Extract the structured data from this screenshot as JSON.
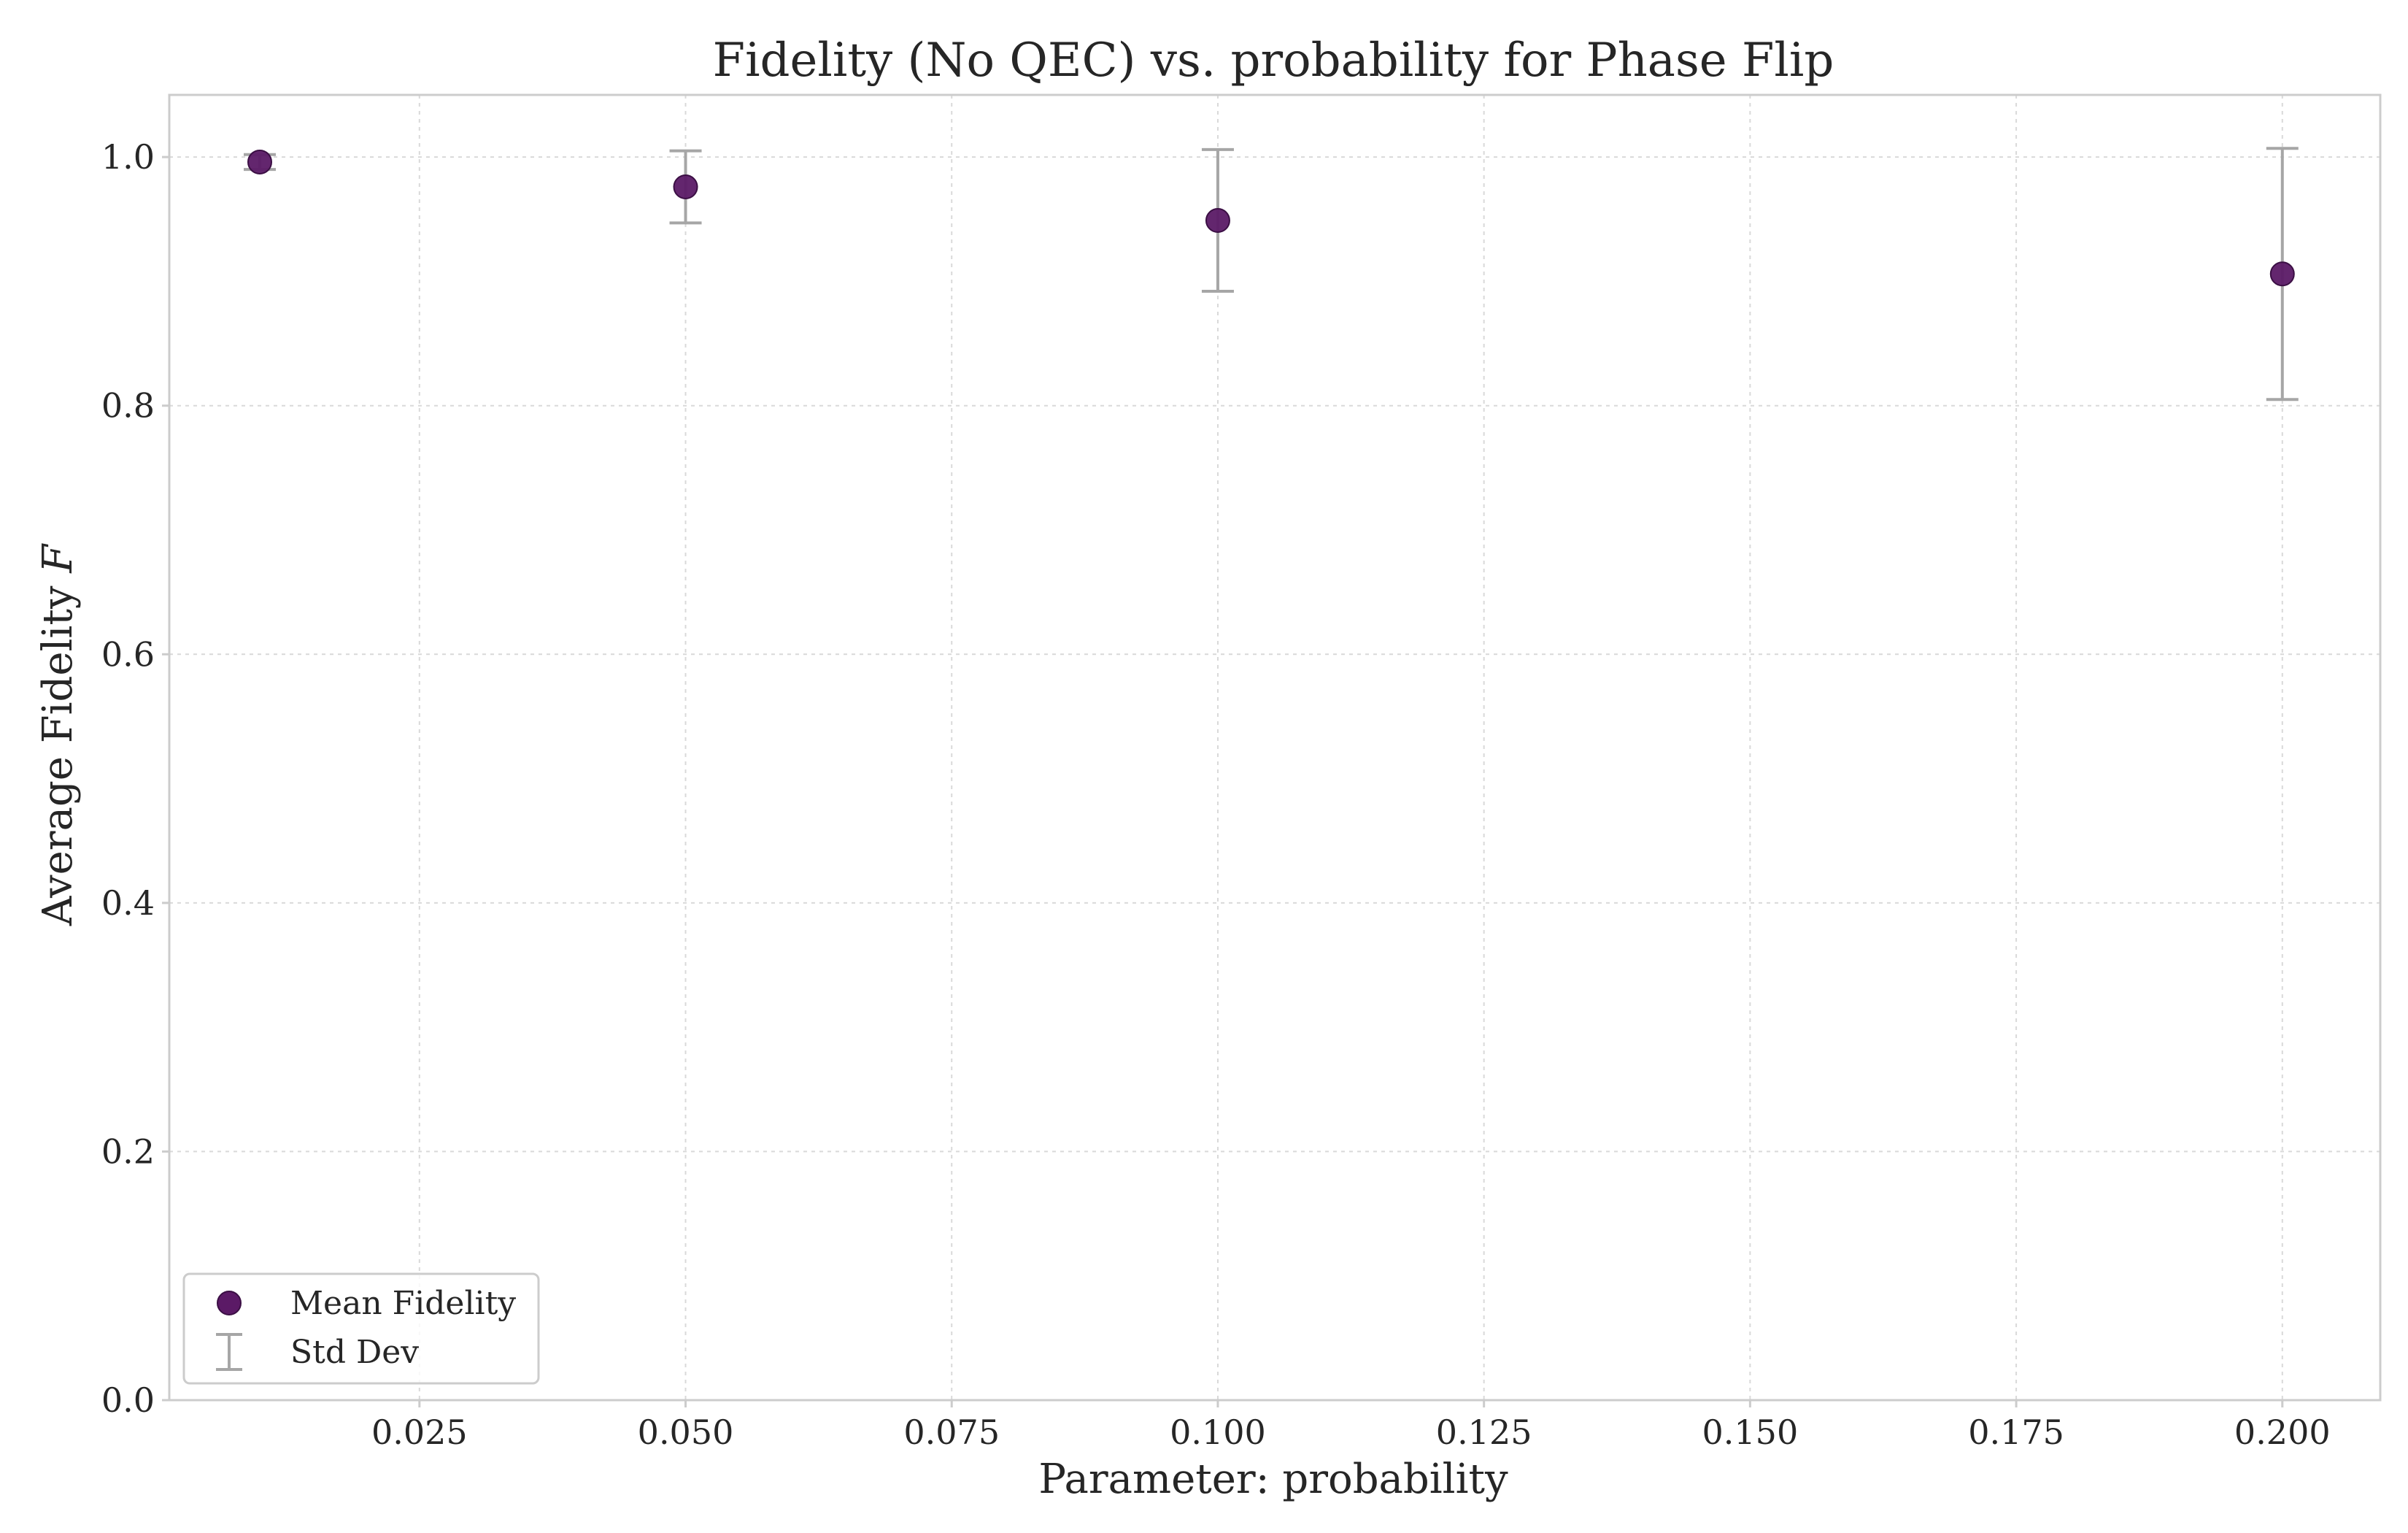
{
  "chart_data": {
    "type": "scatter",
    "title": "Fidelity (No QEC) vs. probability for Phase Flip",
    "xlabel": "Parameter: probability",
    "ylabel": "Average Fidelity",
    "ylabel_symbol": "F",
    "xlim": [
      0.0015,
      0.2092
    ],
    "ylim": [
      0.0,
      1.05
    ],
    "xticks": [
      0.025,
      0.05,
      0.075,
      0.1,
      0.125,
      0.15,
      0.175,
      0.2
    ],
    "xtick_labels": [
      "0.025",
      "0.050",
      "0.075",
      "0.100",
      "0.125",
      "0.150",
      "0.175",
      "0.200"
    ],
    "yticks": [
      0.0,
      0.2,
      0.4,
      0.6,
      0.8,
      1.0
    ],
    "ytick_labels": [
      "0.0",
      "0.2",
      "0.4",
      "0.6",
      "0.8",
      "1.0"
    ],
    "grid": true,
    "legend_position": "lower-left",
    "series": [
      {
        "name": "Mean Fidelity",
        "color": "#5b1a66",
        "x": [
          0.01,
          0.05,
          0.1,
          0.2
        ],
        "y": [
          0.996,
          0.976,
          0.949,
          0.906
        ]
      }
    ],
    "error_bars": {
      "name": "Std Dev",
      "color": "#a6a6a6",
      "x": [
        0.01,
        0.05,
        0.1,
        0.2
      ],
      "y": [
        0.996,
        0.976,
        0.949,
        0.906
      ],
      "err": [
        0.006,
        0.029,
        0.057,
        0.101
      ]
    }
  }
}
